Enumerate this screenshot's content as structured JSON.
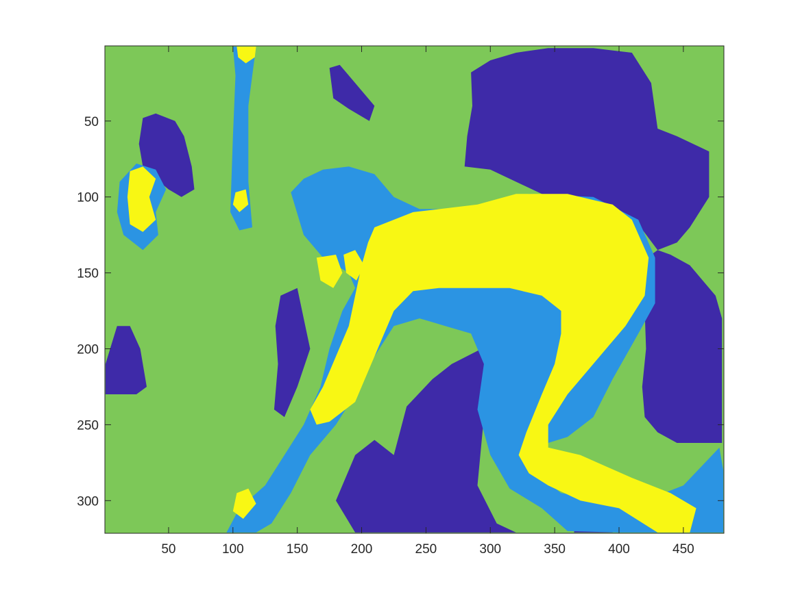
{
  "chart_data": {
    "type": "heatmap",
    "title": "",
    "xlabel": "",
    "ylabel": "",
    "xlim": [
      0.5,
      481.5
    ],
    "ylim": [
      0.5,
      321.5
    ],
    "y_direction": "reverse",
    "grid": false,
    "legend": "none",
    "colormap": "parula",
    "levels": [
      {
        "level": 1,
        "color": "#3e2aa8"
      },
      {
        "level": 2,
        "color": "#2b94e3"
      },
      {
        "level": 3,
        "color": "#7dc858"
      },
      {
        "level": 4,
        "color": "#f8f714"
      }
    ],
    "background_level": 3,
    "x_ticks": [
      50,
      100,
      150,
      200,
      250,
      300,
      350,
      400,
      450
    ],
    "x_tick_labels": [
      "50",
      "100",
      "150",
      "200",
      "250",
      "300",
      "350",
      "400",
      "450"
    ],
    "y_ticks": [
      50,
      100,
      150,
      200,
      250,
      300
    ],
    "y_tick_labels": [
      "50",
      "100",
      "150",
      "200",
      "250",
      "300"
    ],
    "regions": [
      {
        "name": "upper-right-dark",
        "level": 1,
        "points": [
          [
            285,
            18
          ],
          [
            300,
            10
          ],
          [
            320,
            5
          ],
          [
            345,
            2
          ],
          [
            380,
            2
          ],
          [
            410,
            5
          ],
          [
            425,
            25
          ],
          [
            430,
            55
          ],
          [
            445,
            60
          ],
          [
            470,
            70
          ],
          [
            470,
            100
          ],
          [
            455,
            120
          ],
          [
            445,
            130
          ],
          [
            430,
            135
          ],
          [
            415,
            118
          ],
          [
            380,
            105
          ],
          [
            340,
            98
          ],
          [
            300,
            82
          ],
          [
            280,
            80
          ],
          [
            282,
            60
          ],
          [
            286,
            40
          ]
        ]
      },
      {
        "name": "right-dark",
        "level": 1,
        "points": [
          [
            422,
            140
          ],
          [
            430,
            135
          ],
          [
            440,
            138
          ],
          [
            455,
            145
          ],
          [
            475,
            165
          ],
          [
            480,
            180
          ],
          [
            480,
            262
          ],
          [
            445,
            262
          ],
          [
            430,
            255
          ],
          [
            420,
            245
          ],
          [
            418,
            225
          ],
          [
            421,
            200
          ],
          [
            420,
            175
          ]
        ]
      },
      {
        "name": "upper-left-dark",
        "level": 1,
        "points": [
          [
            30,
            48
          ],
          [
            40,
            45
          ],
          [
            55,
            50
          ],
          [
            62,
            60
          ],
          [
            68,
            80
          ],
          [
            70,
            95
          ],
          [
            60,
            100
          ],
          [
            50,
            95
          ],
          [
            40,
            88
          ],
          [
            30,
            80
          ],
          [
            27,
            65
          ]
        ]
      },
      {
        "name": "left-dark",
        "level": 1,
        "points": [
          [
            1,
            210
          ],
          [
            10,
            185
          ],
          [
            20,
            185
          ],
          [
            28,
            200
          ],
          [
            33,
            225
          ],
          [
            25,
            230
          ],
          [
            12,
            230
          ],
          [
            1,
            230
          ]
        ]
      },
      {
        "name": "mid-left-dark",
        "level": 1,
        "points": [
          [
            137,
            165
          ],
          [
            150,
            160
          ],
          [
            155,
            180
          ],
          [
            160,
            200
          ],
          [
            150,
            225
          ],
          [
            140,
            245
          ],
          [
            132,
            240
          ],
          [
            135,
            210
          ],
          [
            133,
            185
          ]
        ]
      },
      {
        "name": "top-left-small-dark",
        "level": 1,
        "points": [
          [
            175,
            15
          ],
          [
            183,
            13
          ],
          [
            195,
            25
          ],
          [
            210,
            40
          ],
          [
            206,
            50
          ],
          [
            190,
            42
          ],
          [
            178,
            35
          ]
        ]
      },
      {
        "name": "center-bottom-dark",
        "level": 1,
        "points": [
          [
            225,
            270
          ],
          [
            235,
            238
          ],
          [
            255,
            220
          ],
          [
            270,
            210
          ],
          [
            300,
            197
          ],
          [
            305,
            215
          ],
          [
            295,
            245
          ],
          [
            290,
            290
          ],
          [
            305,
            315
          ],
          [
            320,
            321
          ],
          [
            280,
            321
          ],
          [
            245,
            321
          ],
          [
            230,
            321
          ],
          [
            195,
            321
          ],
          [
            180,
            300
          ],
          [
            195,
            270
          ],
          [
            210,
            260
          ]
        ]
      },
      {
        "name": "bottom-right-dark",
        "level": 1,
        "points": [
          [
            370,
            300
          ],
          [
            385,
            300
          ],
          [
            400,
            310
          ],
          [
            395,
            321
          ],
          [
            365,
            321
          ]
        ]
      },
      {
        "name": "torso-light",
        "level": 2,
        "points": [
          [
            145,
            97
          ],
          [
            155,
            88
          ],
          [
            170,
            82
          ],
          [
            190,
            80
          ],
          [
            210,
            85
          ],
          [
            225,
            100
          ],
          [
            245,
            108
          ],
          [
            280,
            108
          ],
          [
            330,
            98
          ],
          [
            380,
            100
          ],
          [
            415,
            115
          ],
          [
            428,
            140
          ],
          [
            428,
            170
          ],
          [
            415,
            190
          ],
          [
            395,
            220
          ],
          [
            380,
            245
          ],
          [
            360,
            258
          ],
          [
            345,
            262
          ],
          [
            340,
            285
          ],
          [
            355,
            295
          ],
          [
            390,
            300
          ],
          [
            420,
            300
          ],
          [
            450,
            290
          ],
          [
            478,
            265
          ],
          [
            481,
            280
          ],
          [
            481,
            321
          ],
          [
            440,
            321
          ],
          [
            400,
            321
          ],
          [
            360,
            320
          ],
          [
            340,
            305
          ],
          [
            315,
            292
          ],
          [
            300,
            270
          ],
          [
            290,
            240
          ],
          [
            295,
            210
          ],
          [
            285,
            190
          ],
          [
            265,
            185
          ],
          [
            245,
            180
          ],
          [
            225,
            185
          ],
          [
            210,
            205
          ],
          [
            195,
            230
          ],
          [
            180,
            250
          ],
          [
            160,
            270
          ],
          [
            145,
            295
          ],
          [
            130,
            315
          ],
          [
            118,
            321
          ],
          [
            95,
            321
          ],
          [
            105,
            305
          ],
          [
            125,
            290
          ],
          [
            140,
            270
          ],
          [
            155,
            250
          ],
          [
            168,
            225
          ],
          [
            175,
            200
          ],
          [
            185,
            175
          ],
          [
            195,
            160
          ],
          [
            190,
            150
          ],
          [
            170,
            140
          ],
          [
            155,
            125
          ]
        ]
      },
      {
        "name": "vertical-light",
        "level": 2,
        "points": [
          [
            100,
            1
          ],
          [
            118,
            1
          ],
          [
            115,
            20
          ],
          [
            112,
            40
          ],
          [
            112,
            90
          ],
          [
            115,
            120
          ],
          [
            105,
            122
          ],
          [
            98,
            110
          ],
          [
            100,
            60
          ],
          [
            102,
            20
          ]
        ]
      },
      {
        "name": "left-light-ring",
        "level": 2,
        "points": [
          [
            12,
            90
          ],
          [
            25,
            78
          ],
          [
            40,
            82
          ],
          [
            48,
            95
          ],
          [
            40,
            110
          ],
          [
            42,
            125
          ],
          [
            30,
            135
          ],
          [
            15,
            125
          ],
          [
            10,
            110
          ]
        ]
      },
      {
        "name": "figure-yellow",
        "level": 4,
        "points": [
          [
            210,
            120
          ],
          [
            240,
            110
          ],
          [
            290,
            105
          ],
          [
            320,
            98
          ],
          [
            360,
            98
          ],
          [
            395,
            105
          ],
          [
            410,
            115
          ],
          [
            423,
            140
          ],
          [
            420,
            165
          ],
          [
            405,
            185
          ],
          [
            390,
            200
          ],
          [
            375,
            215
          ],
          [
            360,
            230
          ],
          [
            345,
            250
          ],
          [
            345,
            265
          ],
          [
            370,
            270
          ],
          [
            410,
            285
          ],
          [
            440,
            295
          ],
          [
            460,
            305
          ],
          [
            455,
            321
          ],
          [
            430,
            321
          ],
          [
            400,
            305
          ],
          [
            370,
            300
          ],
          [
            345,
            290
          ],
          [
            330,
            282
          ],
          [
            322,
            270
          ],
          [
            328,
            255
          ],
          [
            340,
            230
          ],
          [
            350,
            210
          ],
          [
            355,
            190
          ],
          [
            355,
            175
          ],
          [
            340,
            165
          ],
          [
            315,
            160
          ],
          [
            290,
            160
          ],
          [
            260,
            160
          ],
          [
            240,
            162
          ],
          [
            225,
            175
          ],
          [
            215,
            195
          ],
          [
            205,
            215
          ],
          [
            195,
            235
          ],
          [
            175,
            248
          ],
          [
            165,
            250
          ],
          [
            160,
            240
          ],
          [
            170,
            225
          ],
          [
            180,
            205
          ],
          [
            190,
            185
          ],
          [
            195,
            165
          ],
          [
            200,
            145
          ],
          [
            205,
            130
          ]
        ]
      },
      {
        "name": "top-yellow",
        "level": 4,
        "points": [
          [
            103,
            1
          ],
          [
            118,
            1
          ],
          [
            117,
            8
          ],
          [
            110,
            12
          ],
          [
            104,
            8
          ]
        ]
      },
      {
        "name": "left-yellow",
        "level": 4,
        "points": [
          [
            20,
            83
          ],
          [
            30,
            80
          ],
          [
            40,
            88
          ],
          [
            35,
            100
          ],
          [
            40,
            115
          ],
          [
            30,
            123
          ],
          [
            20,
            118
          ],
          [
            18,
            100
          ]
        ]
      },
      {
        "name": "small-yellow-a",
        "level": 4,
        "points": [
          [
            102,
            97
          ],
          [
            110,
            95
          ],
          [
            112,
            105
          ],
          [
            105,
            110
          ],
          [
            100,
            105
          ]
        ]
      },
      {
        "name": "small-yellow-b",
        "level": 4,
        "points": [
          [
            165,
            140
          ],
          [
            180,
            138
          ],
          [
            185,
            150
          ],
          [
            178,
            160
          ],
          [
            168,
            155
          ]
        ]
      },
      {
        "name": "small-yellow-c",
        "level": 4,
        "points": [
          [
            186,
            138
          ],
          [
            195,
            135
          ],
          [
            202,
            145
          ],
          [
            196,
            155
          ],
          [
            188,
            150
          ]
        ]
      },
      {
        "name": "small-yellow-d",
        "level": 4,
        "points": [
          [
            103,
            295
          ],
          [
            112,
            292
          ],
          [
            118,
            302
          ],
          [
            108,
            312
          ],
          [
            100,
            307
          ]
        ]
      }
    ]
  }
}
